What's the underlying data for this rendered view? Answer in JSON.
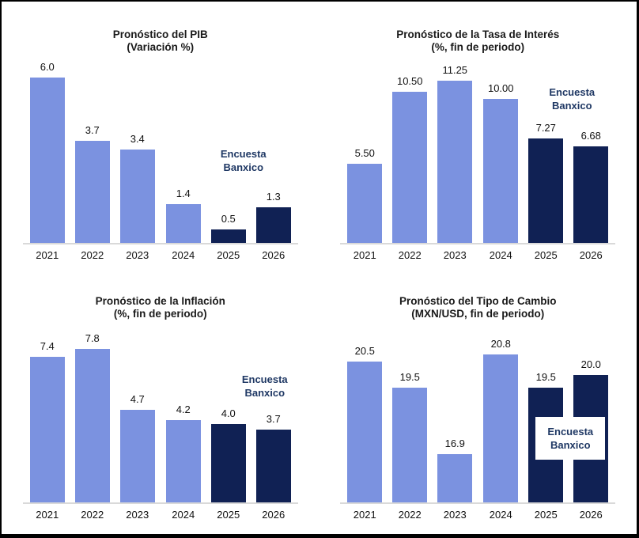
{
  "page": {
    "background": "#ffffff",
    "frame_border_color": "#000000"
  },
  "colors": {
    "bar_light": "#7B92E0",
    "bar_dark": "#102154",
    "annotation_text": "#1F3864",
    "axis_line": "#D9D9D9",
    "label_text": "#111111"
  },
  "annotation": {
    "line1": "Encuesta",
    "line2": "Banxico"
  },
  "chart_data": [
    {
      "type": "bar",
      "title": "Pronóstico del PIB",
      "subtitle": "(Variación %)",
      "categories": [
        "2021",
        "2022",
        "2023",
        "2024",
        "2025",
        "2026"
      ],
      "values": [
        6.0,
        3.7,
        3.4,
        1.4,
        0.5,
        1.3
      ],
      "value_labels": [
        "6.0",
        "3.7",
        "3.4",
        "1.4",
        "0.5",
        "1.3"
      ],
      "forecast_from_index": 4,
      "annotation": {
        "line1": "Encuesta",
        "line2": "Banxico"
      },
      "ylim": [
        0,
        6.75
      ],
      "grid": false,
      "legend_position": "none",
      "xlabel": "",
      "ylabel": ""
    },
    {
      "type": "bar",
      "title": "Pronóstico de la Tasa de Interés",
      "subtitle": "(%, fin de periodo)",
      "categories": [
        "2021",
        "2022",
        "2023",
        "2024",
        "2025",
        "2026"
      ],
      "values": [
        5.5,
        10.5,
        11.25,
        10.0,
        7.27,
        6.68
      ],
      "value_labels": [
        "5.50",
        "10.50",
        "11.25",
        "10.00",
        "7.27",
        "6.68"
      ],
      "forecast_from_index": 4,
      "annotation": {
        "line1": "Encuesta",
        "line2": "Banxico"
      },
      "ylim": [
        0,
        12.9
      ],
      "grid": false,
      "legend_position": "none",
      "xlabel": "",
      "ylabel": ""
    },
    {
      "type": "bar",
      "title": "Pronóstico de la Inflación",
      "subtitle": "(%, fin de periodo)",
      "categories": [
        "2021",
        "2022",
        "2023",
        "2024",
        "2025",
        "2026"
      ],
      "values": [
        7.4,
        7.8,
        4.7,
        4.2,
        4.0,
        3.7
      ],
      "value_labels": [
        "7.4",
        "7.8",
        "4.7",
        "4.2",
        "4.0",
        "3.7"
      ],
      "forecast_from_index": 4,
      "annotation": {
        "line1": "Encuesta",
        "line2": "Banxico"
      },
      "ylim": [
        0,
        9.1
      ],
      "grid": false,
      "legend_position": "none",
      "xlabel": "",
      "ylabel": ""
    },
    {
      "type": "bar",
      "title": "Pronóstico del Tipo de Cambio",
      "subtitle": "(MXN/USD, fin de periodo)",
      "categories": [
        "2021",
        "2022",
        "2023",
        "2024",
        "2025",
        "2026"
      ],
      "values": [
        20.5,
        19.5,
        16.9,
        20.8,
        19.5,
        20.0
      ],
      "value_labels": [
        "20.5",
        "19.5",
        "16.9",
        "20.8",
        "19.5",
        "20.0"
      ],
      "forecast_from_index": 4,
      "annotation": {
        "line1": "Encuesta",
        "line2": "Banxico"
      },
      "ylim": [
        15,
        22
      ],
      "grid": false,
      "legend_position": "none",
      "xlabel": "",
      "ylabel": ""
    }
  ]
}
